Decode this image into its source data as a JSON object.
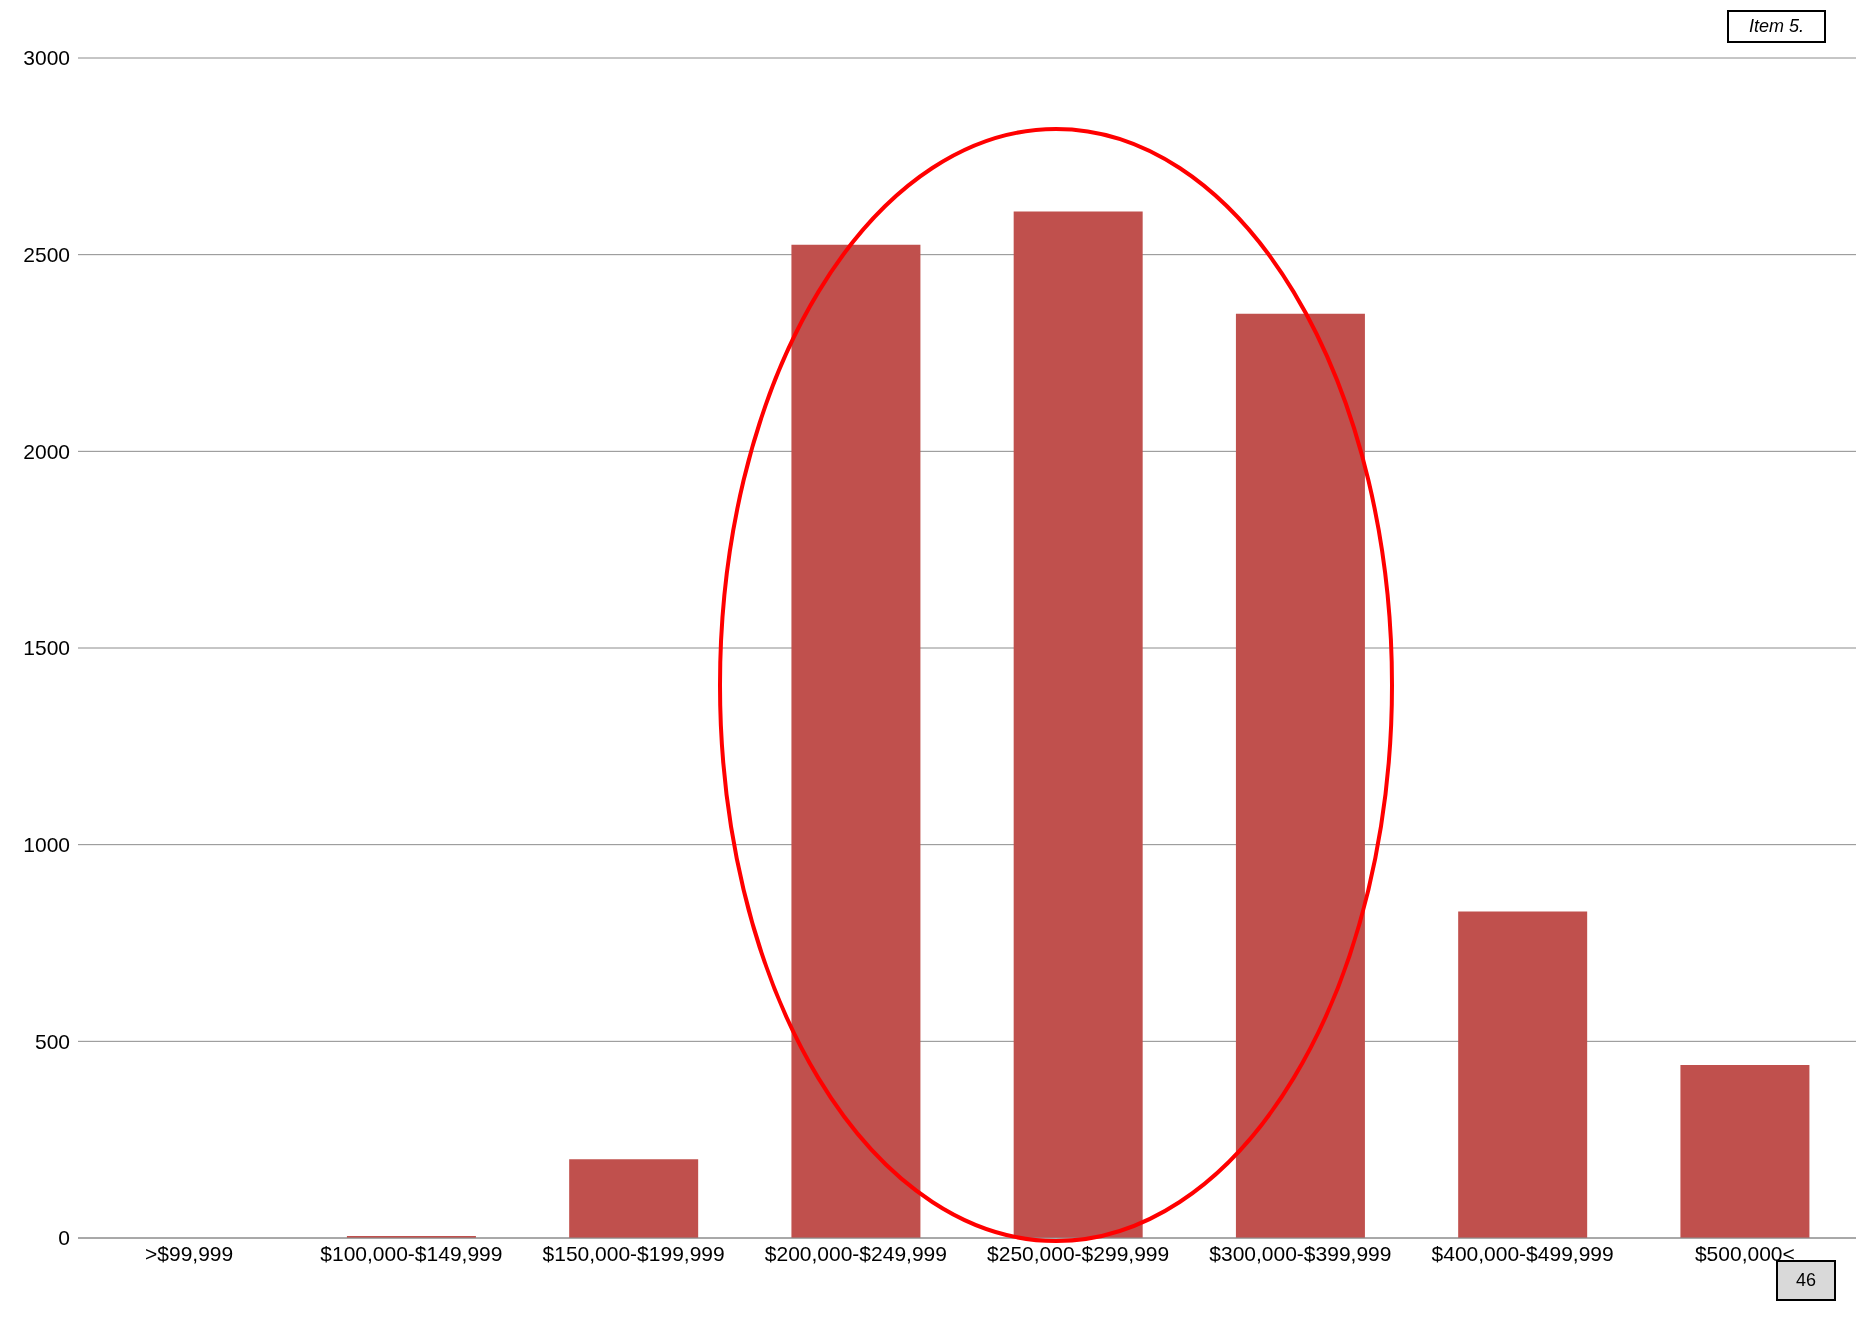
{
  "chart_data": {
    "type": "bar",
    "categories": [
      ">$99,999",
      "$100,000-$149,999",
      "$150,000-$199,999",
      "$200,000-$249,999",
      "$250,000-$299,999",
      "$300,000-$399,999",
      "$400,000-$499,999",
      "$500,000<"
    ],
    "values": [
      0,
      5,
      200,
      2525,
      2610,
      2350,
      830,
      440
    ],
    "color": "#c0504d",
    "ylim": [
      0,
      3000
    ],
    "yticks": [
      0,
      500,
      1000,
      1500,
      2000,
      2500,
      3000
    ],
    "grid": "y",
    "annotations": [
      "Item 5.",
      "46"
    ]
  }
}
